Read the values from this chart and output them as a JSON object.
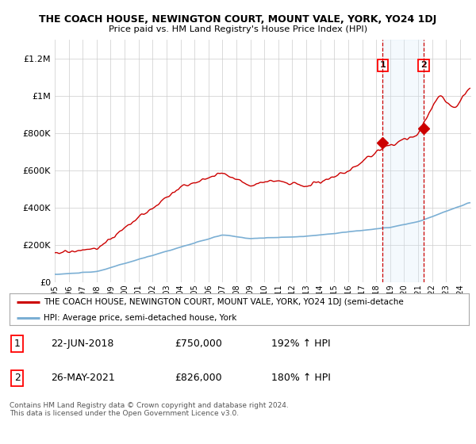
{
  "title": "THE COACH HOUSE, NEWINGTON COURT, MOUNT VALE, YORK, YO24 1DJ",
  "subtitle": "Price paid vs. HM Land Registry's House Price Index (HPI)",
  "ylabel_ticks": [
    "£0",
    "£200K",
    "£400K",
    "£600K",
    "£800K",
    "£1M",
    "£1.2M"
  ],
  "ytick_values": [
    0,
    200000,
    400000,
    600000,
    800000,
    1000000,
    1200000
  ],
  "ylim": [
    0,
    1300000
  ],
  "xlim_start": 1995.0,
  "xlim_end": 2024.8,
  "hpi_color": "#7bafd4",
  "price_color": "#cc0000",
  "marker1_date": 2018.47,
  "marker1_price": 750000,
  "marker1_label": "1",
  "marker2_date": 2021.4,
  "marker2_price": 826000,
  "marker2_label": "2",
  "legend_line1": "THE COACH HOUSE, NEWINGTON COURT, MOUNT VALE, YORK, YO24 1DJ (semi-detache",
  "legend_line2": "HPI: Average price, semi-detached house, York",
  "table_row1": [
    "1",
    "22-JUN-2018",
    "£750,000",
    "192% ↑ HPI"
  ],
  "table_row2": [
    "2",
    "26-MAY-2021",
    "£826,000",
    "180% ↑ HPI"
  ],
  "footnote": "Contains HM Land Registry data © Crown copyright and database right 2024.\nThis data is licensed under the Open Government Licence v3.0.",
  "background_color": "#ffffff",
  "grid_color": "#cccccc",
  "marker_vline_color": "#cc0000",
  "marker_shade_color": "#d6eaf8"
}
